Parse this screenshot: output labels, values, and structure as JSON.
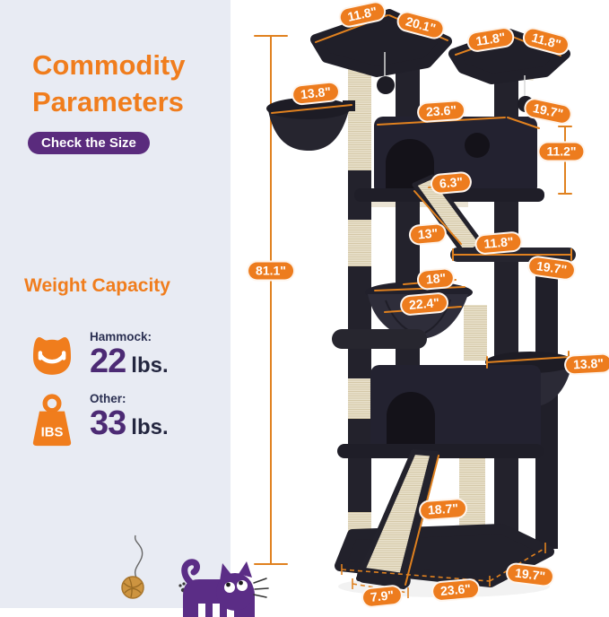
{
  "panel": {
    "title_line1": "Commodity",
    "title_line2": "Parameters",
    "badge_label": "Check the Size",
    "section_heading": "Weight Capacity",
    "capacities": [
      {
        "icon": "cat-hammock-icon",
        "label": "Hammock:",
        "value": "22",
        "unit": "lbs."
      },
      {
        "icon": "weight-icon",
        "icon_text": "IBS",
        "label": "Other:",
        "value": "33",
        "unit": "lbs."
      }
    ]
  },
  "colors": {
    "accent_orange": "#f07d1d",
    "pill_orange": "#ed7c1e",
    "badge_purple": "#5a2b7d",
    "number_purple": "#4c2a74",
    "dark_text": "#23263f",
    "panel_bg": "#e8ebf3",
    "dimension_line": "#e0811f",
    "tree_dark": "#23222c",
    "sisal_beige": "#e9e1cb",
    "cat_purple": "#5b2d86"
  },
  "measurements": [
    {
      "id": "top-left-platform-width",
      "text": "11.8\""
    },
    {
      "id": "top-left-platform-depth",
      "text": "20.1\""
    },
    {
      "id": "top-right-platform-width",
      "text": "11.8\""
    },
    {
      "id": "top-right-platform-depth",
      "text": "11.8\""
    },
    {
      "id": "upper-basket-width",
      "text": "13.8\""
    },
    {
      "id": "condo-width",
      "text": "23.6\""
    },
    {
      "id": "condo-depth",
      "text": "19.7\""
    },
    {
      "id": "condo-height",
      "text": "11.2\""
    },
    {
      "id": "ramp-top-width",
      "text": "6.3\""
    },
    {
      "id": "ramp-length",
      "text": "13\""
    },
    {
      "id": "shelf-width",
      "text": "11.8\""
    },
    {
      "id": "shelf-depth",
      "text": "19.7\""
    },
    {
      "id": "overall-height",
      "text": "81.1\""
    },
    {
      "id": "hammock-span",
      "text": "18\""
    },
    {
      "id": "hammock-width",
      "text": "22.4\""
    },
    {
      "id": "lower-basket-width",
      "text": "13.8\""
    },
    {
      "id": "scratch-ramp-length",
      "text": "18.7\""
    },
    {
      "id": "base-depth",
      "text": "19.7\""
    },
    {
      "id": "base-width",
      "text": "23.6\""
    },
    {
      "id": "scratch-ramp-width",
      "text": "7.9\""
    }
  ]
}
